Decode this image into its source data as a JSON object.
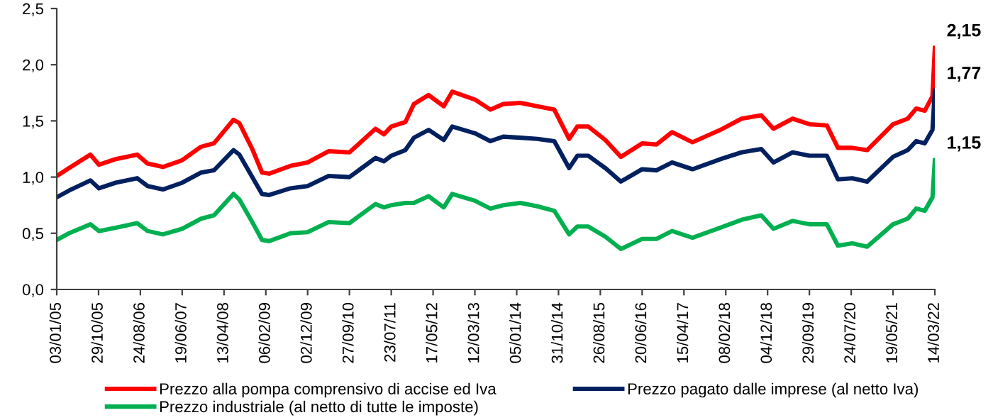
{
  "chart_data": {
    "type": "line",
    "x": [
      "2005-01-03",
      "2005-04-01",
      "2005-09-01",
      "2005-11-01",
      "2006-03-01",
      "2006-08-01",
      "2006-10-15",
      "2007-02-01",
      "2007-06-19",
      "2007-11-01",
      "2008-02-01",
      "2008-06-20",
      "2008-08-01",
      "2008-11-01",
      "2009-01-10",
      "2009-03-01",
      "2009-08-01",
      "2009-12-02",
      "2010-05-01",
      "2010-09-27",
      "2011-04-01",
      "2011-06-01",
      "2011-07-23",
      "2011-11-01",
      "2012-01-01",
      "2012-04-15",
      "2012-08-01",
      "2012-10-01",
      "2013-03-12",
      "2013-07-01",
      "2013-10-01",
      "2014-02-01",
      "2014-06-01",
      "2014-10-01",
      "2015-01-15",
      "2015-03-15",
      "2015-06-01",
      "2015-10-01",
      "2016-01-20",
      "2016-06-20",
      "2016-10-01",
      "2017-01-20",
      "2017-06-15",
      "2018-01-01",
      "2018-06-01",
      "2018-10-20",
      "2019-01-15",
      "2019-06-01",
      "2019-09-29",
      "2020-02-01",
      "2020-04-20",
      "2020-08-01",
      "2020-11-15",
      "2021-05-19",
      "2021-09-01",
      "2021-11-01",
      "2022-01-01",
      "2022-02-25",
      "2022-03-14"
    ],
    "series": [
      {
        "name": "Prezzo alla pompa comprensivo di accise ed Iva",
        "color": "#ff0000",
        "values": [
          1.01,
          1.08,
          1.2,
          1.11,
          1.16,
          1.2,
          1.12,
          1.09,
          1.15,
          1.27,
          1.3,
          1.51,
          1.48,
          1.25,
          1.04,
          1.03,
          1.1,
          1.13,
          1.23,
          1.22,
          1.43,
          1.38,
          1.45,
          1.49,
          1.65,
          1.73,
          1.63,
          1.76,
          1.69,
          1.6,
          1.65,
          1.66,
          1.63,
          1.6,
          1.34,
          1.45,
          1.45,
          1.33,
          1.18,
          1.3,
          1.29,
          1.4,
          1.31,
          1.42,
          1.52,
          1.55,
          1.43,
          1.52,
          1.47,
          1.46,
          1.26,
          1.26,
          1.24,
          1.47,
          1.52,
          1.61,
          1.59,
          1.72,
          2.15
        ],
        "value_labels": [
          null,
          null,
          null,
          null,
          null,
          null,
          null,
          null,
          null,
          null,
          null,
          null,
          null,
          null,
          null,
          null,
          null,
          null,
          null,
          null,
          null,
          null,
          null,
          null,
          null,
          null,
          null,
          null,
          null,
          null,
          null,
          null,
          null,
          null,
          null,
          null,
          null,
          null,
          null,
          null,
          null,
          null,
          null,
          null,
          null,
          null,
          null,
          null,
          null,
          null,
          null,
          null,
          null,
          null,
          null,
          null,
          null,
          null,
          "2,15"
        ]
      },
      {
        "name": "Prezzo pagato dalle imprese (al netto Iva)",
        "color": "#002060",
        "values": [
          0.82,
          0.88,
          0.97,
          0.9,
          0.95,
          0.99,
          0.92,
          0.89,
          0.95,
          1.04,
          1.06,
          1.24,
          1.2,
          1.0,
          0.85,
          0.84,
          0.9,
          0.92,
          1.01,
          1.0,
          1.17,
          1.14,
          1.19,
          1.24,
          1.35,
          1.42,
          1.33,
          1.45,
          1.39,
          1.32,
          1.36,
          1.35,
          1.34,
          1.32,
          1.08,
          1.19,
          1.19,
          1.08,
          0.96,
          1.07,
          1.06,
          1.13,
          1.07,
          1.16,
          1.22,
          1.25,
          1.13,
          1.22,
          1.19,
          1.19,
          0.98,
          0.99,
          0.96,
          1.18,
          1.24,
          1.32,
          1.3,
          1.42,
          1.77
        ],
        "value_labels": [
          null,
          null,
          null,
          null,
          null,
          null,
          null,
          null,
          null,
          null,
          null,
          null,
          null,
          null,
          null,
          null,
          null,
          null,
          null,
          null,
          null,
          null,
          null,
          null,
          null,
          null,
          null,
          null,
          null,
          null,
          null,
          null,
          null,
          null,
          null,
          null,
          null,
          null,
          null,
          null,
          null,
          null,
          null,
          null,
          null,
          null,
          null,
          null,
          null,
          null,
          null,
          null,
          null,
          null,
          null,
          null,
          null,
          null,
          "1,77"
        ]
      },
      {
        "name": "Prezzo industriale (al netto di tutte le imposte)",
        "color": "#00b050",
        "values": [
          0.44,
          0.5,
          0.58,
          0.52,
          0.55,
          0.59,
          0.52,
          0.49,
          0.54,
          0.63,
          0.66,
          0.85,
          0.8,
          0.6,
          0.44,
          0.43,
          0.5,
          0.51,
          0.6,
          0.59,
          0.76,
          0.73,
          0.75,
          0.77,
          0.77,
          0.83,
          0.73,
          0.85,
          0.79,
          0.72,
          0.75,
          0.77,
          0.74,
          0.7,
          0.49,
          0.56,
          0.56,
          0.47,
          0.36,
          0.45,
          0.45,
          0.52,
          0.46,
          0.55,
          0.62,
          0.66,
          0.54,
          0.61,
          0.58,
          0.58,
          0.39,
          0.41,
          0.38,
          0.58,
          0.63,
          0.72,
          0.7,
          0.82,
          1.15
        ],
        "value_labels": [
          null,
          null,
          null,
          null,
          null,
          null,
          null,
          null,
          null,
          null,
          null,
          null,
          null,
          null,
          null,
          null,
          null,
          null,
          null,
          null,
          null,
          null,
          null,
          null,
          null,
          null,
          null,
          null,
          null,
          null,
          null,
          null,
          null,
          null,
          null,
          null,
          null,
          null,
          null,
          null,
          null,
          null,
          null,
          null,
          null,
          null,
          null,
          null,
          null,
          null,
          null,
          null,
          null,
          null,
          null,
          null,
          null,
          null,
          "1,15"
        ]
      }
    ],
    "xlim": [
      "2005-01-03",
      "2022-03-14"
    ],
    "xticks": [
      {
        "value": "2005-01-03",
        "label": "03/01/05"
      },
      {
        "value": "2005-10-29",
        "label": "29/10/05"
      },
      {
        "value": "2006-08-24",
        "label": "24/08/06"
      },
      {
        "value": "2007-06-19",
        "label": "19/06/07"
      },
      {
        "value": "2008-04-13",
        "label": "13/04/08"
      },
      {
        "value": "2009-02-06",
        "label": "06/02/09"
      },
      {
        "value": "2009-12-02",
        "label": "02/12/09"
      },
      {
        "value": "2010-09-27",
        "label": "27/09/10"
      },
      {
        "value": "2011-07-23",
        "label": "23/07/11"
      },
      {
        "value": "2012-05-17",
        "label": "17/05/12"
      },
      {
        "value": "2013-03-12",
        "label": "12/03/13"
      },
      {
        "value": "2014-01-05",
        "label": "05/01/14"
      },
      {
        "value": "2014-10-31",
        "label": "31/10/14"
      },
      {
        "value": "2015-08-26",
        "label": "26/08/15"
      },
      {
        "value": "2016-06-20",
        "label": "20/06/16"
      },
      {
        "value": "2017-04-15",
        "label": "15/04/17"
      },
      {
        "value": "2018-02-08",
        "label": "08/02/18"
      },
      {
        "value": "2018-12-04",
        "label": "04/12/18"
      },
      {
        "value": "2019-09-29",
        "label": "29/09/19"
      },
      {
        "value": "2020-07-24",
        "label": "24/07/20"
      },
      {
        "value": "2021-05-19",
        "label": "19/05/21"
      },
      {
        "value": "2022-03-14",
        "label": "14/03/22"
      }
    ],
    "ylim": [
      0,
      2.5
    ],
    "yticks": [
      {
        "value": 0,
        "label": "0,0"
      },
      {
        "value": 0.5,
        "label": "0,5"
      },
      {
        "value": 1,
        "label": "1,0"
      },
      {
        "value": 1.5,
        "label": "1,5"
      },
      {
        "value": 2,
        "label": "2,0"
      },
      {
        "value": 2.5,
        "label": "2,5"
      }
    ],
    "grid": false,
    "legend": "bottom",
    "marker": "none",
    "line_style": "solid"
  }
}
